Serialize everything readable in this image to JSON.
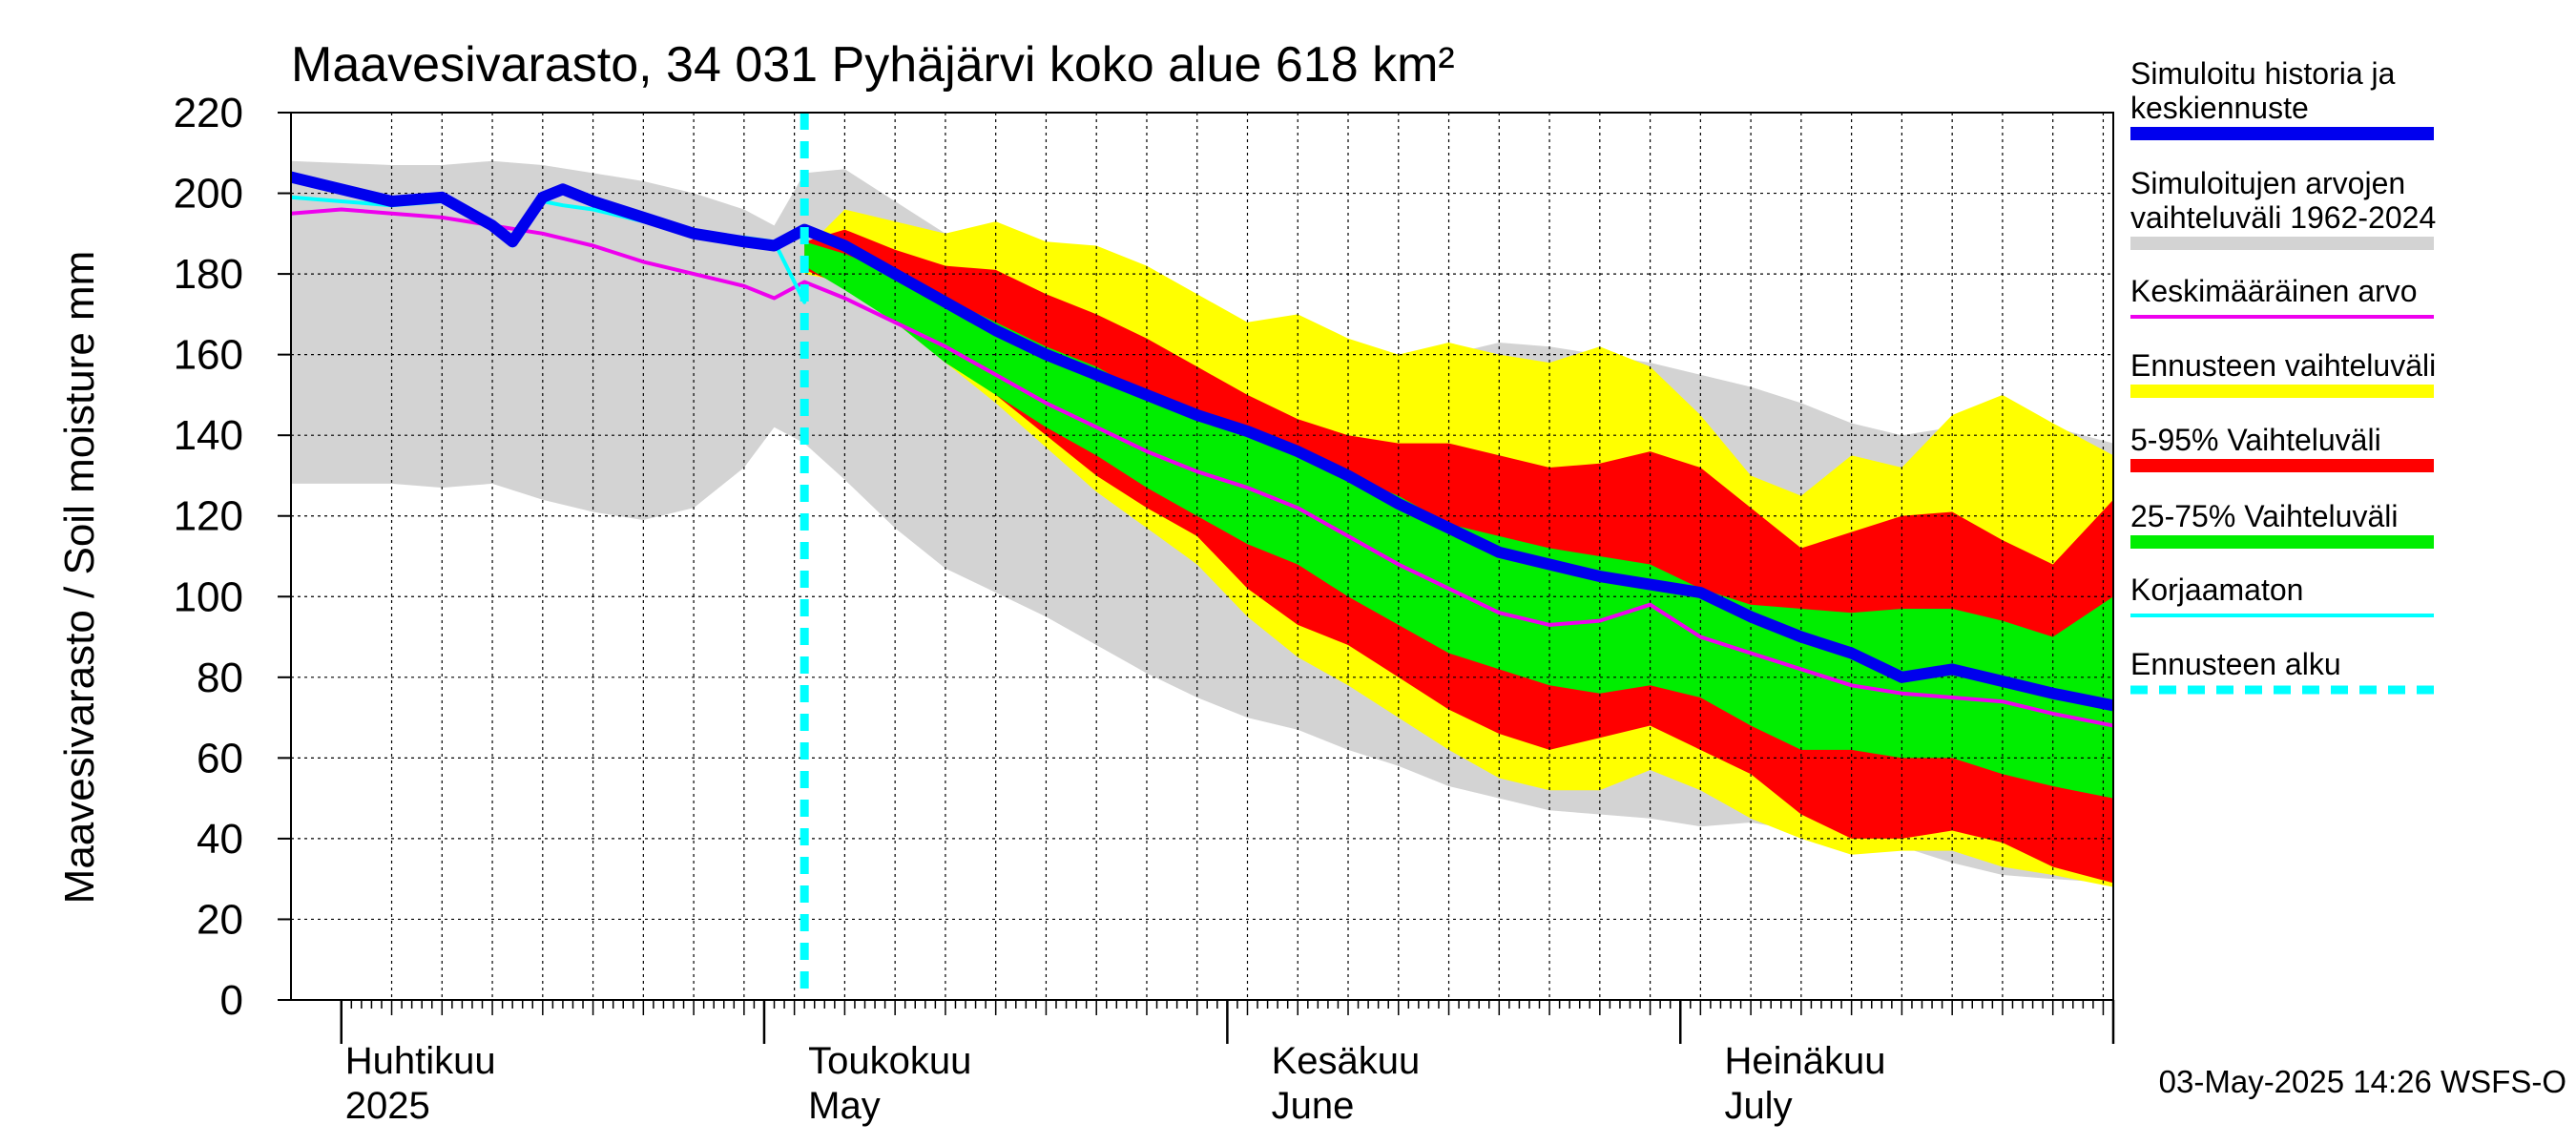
{
  "chart_data": {
    "type": "area",
    "title": "Maavesivarasto, 34 031 Pyhäjärvi koko alue 618 km²",
    "ylabel": "Maavesivarasto / Soil moisture   mm",
    "ylim": [
      0,
      220
    ],
    "yticks": [
      "0",
      "20",
      "40",
      "60",
      "80",
      "100",
      "120",
      "140",
      "160",
      "180",
      "200",
      "220"
    ],
    "x_range_days": [
      -5,
      176
    ],
    "forecast_start_day": 46,
    "month_labels": [
      {
        "fi": "Huhtikuu",
        "en": "2025",
        "day": 0
      },
      {
        "fi": "Toukokuu",
        "en": "May",
        "day": 46
      },
      {
        "fi": "Kesäkuu",
        "en": "June",
        "day": 92
      },
      {
        "fi": "Heinäkuu",
        "en": "July",
        "day": 137
      }
    ],
    "month_boundaries": [
      0,
      42,
      88,
      133,
      176
    ],
    "grid": true,
    "legend": [
      {
        "label": "Simuloitu historia ja keskiennuste",
        "line1": "Simuloitu historia ja",
        "line2": "keskiennuste",
        "color": "#0000ee",
        "style": "thick"
      },
      {
        "label": "Simuloitujen arvojen vaihteluväli 1962-2024",
        "line1": "Simuloitujen arvojen",
        "line2": "vaihteluväli 1962-2024",
        "color": "#d3d3d3",
        "style": "thick"
      },
      {
        "label": "Keskimääräinen arvo",
        "line1": "Keskimääräinen arvo",
        "line2": "",
        "color": "#ee00ee",
        "style": "thin"
      },
      {
        "label": "Ennusteen vaihteluväli",
        "line1": "Ennusteen vaihteluväli",
        "line2": "",
        "color": "#ffff00",
        "style": "thick"
      },
      {
        "label": "5-95% Vaihteluväli",
        "line1": "5-95% Vaihteluväli",
        "line2": "",
        "color": "#ff0000",
        "style": "thick"
      },
      {
        "label": "25-75% Vaihteluväli",
        "line1": "25-75% Vaihteluväli",
        "line2": "",
        "color": "#00ee00",
        "style": "thick"
      },
      {
        "label": "Korjaamaton",
        "line1": "Korjaamaton",
        "line2": "",
        "color": "#00ffff",
        "style": "thin"
      },
      {
        "label": "Ennusteen alku",
        "line1": "Ennusteen alku",
        "line2": "",
        "color": "#00ffff",
        "style": "dashed"
      }
    ],
    "series": {
      "hist_range": {
        "days": [
          -5,
          5,
          10,
          15,
          20,
          25,
          30,
          35,
          40,
          43,
          46,
          50,
          55,
          60,
          65,
          70,
          75,
          80,
          85,
          90,
          95,
          100,
          105,
          110,
          115,
          120,
          125,
          130,
          135,
          140,
          145,
          150,
          155,
          160,
          165,
          170,
          176
        ],
        "upper": [
          208,
          207,
          207,
          208,
          207,
          205,
          203,
          200,
          196,
          192,
          205,
          206,
          198,
          190,
          185,
          182,
          179,
          176,
          172,
          167,
          163,
          160,
          158,
          160,
          163,
          162,
          160,
          158,
          155,
          152,
          148,
          143,
          140,
          142,
          140,
          142,
          138
        ],
        "lower": [
          128,
          128,
          127,
          128,
          124,
          121,
          119,
          122,
          132,
          142,
          138,
          129,
          117,
          107,
          101,
          95,
          88,
          81,
          75,
          70,
          67,
          62,
          58,
          53,
          50,
          47,
          46,
          45,
          43,
          44,
          42,
          40,
          38,
          34,
          31,
          30,
          29
        ]
      },
      "forecast_range": {
        "days": [
          46,
          50,
          55,
          60,
          65,
          70,
          75,
          80,
          85,
          90,
          95,
          100,
          105,
          110,
          115,
          120,
          125,
          130,
          135,
          140,
          145,
          150,
          155,
          160,
          165,
          170,
          176
        ],
        "upper": [
          186,
          196,
          193,
          190,
          193,
          188,
          187,
          182,
          175,
          168,
          170,
          164,
          160,
          163,
          160,
          158,
          162,
          157,
          145,
          130,
          125,
          135,
          132,
          145,
          150,
          143,
          135
        ],
        "lower": [
          180,
          178,
          168,
          158,
          148,
          137,
          126,
          117,
          108,
          95,
          85,
          78,
          70,
          62,
          55,
          52,
          52,
          57,
          52,
          45,
          40,
          36,
          37,
          37,
          33,
          31,
          28
        ]
      },
      "p5_95": {
        "days": [
          46,
          50,
          55,
          60,
          65,
          70,
          75,
          80,
          85,
          90,
          95,
          100,
          105,
          110,
          115,
          120,
          125,
          130,
          135,
          140,
          145,
          150,
          155,
          160,
          165,
          170,
          176
        ],
        "upper": [
          188,
          191,
          186,
          182,
          181,
          175,
          170,
          164,
          157,
          150,
          144,
          140,
          138,
          138,
          135,
          132,
          133,
          136,
          132,
          122,
          112,
          116,
          120,
          121,
          114,
          108,
          124
        ],
        "lower": [
          181,
          177,
          170,
          160,
          150,
          140,
          130,
          122,
          115,
          102,
          93,
          88,
          80,
          72,
          66,
          62,
          65,
          68,
          62,
          56,
          46,
          40,
          40,
          42,
          39,
          33,
          29
        ]
      },
      "p25_75": {
        "days": [
          46,
          50,
          55,
          60,
          65,
          70,
          75,
          80,
          85,
          90,
          95,
          100,
          105,
          110,
          115,
          120,
          125,
          130,
          135,
          140,
          145,
          150,
          155,
          160,
          165,
          170,
          176
        ],
        "upper": [
          188,
          185,
          180,
          174,
          168,
          162,
          157,
          150,
          146,
          140,
          135,
          130,
          125,
          118,
          115,
          112,
          110,
          108,
          102,
          98,
          97,
          96,
          97,
          97,
          94,
          90,
          100
        ],
        "lower": [
          182,
          176,
          168,
          158,
          150,
          142,
          135,
          127,
          120,
          113,
          108,
          100,
          93,
          86,
          82,
          78,
          76,
          78,
          75,
          68,
          62,
          62,
          60,
          60,
          56,
          53,
          50
        ]
      },
      "mean": {
        "days": [
          -5,
          0,
          5,
          10,
          15,
          20,
          25,
          30,
          35,
          40,
          43,
          46,
          50,
          55,
          60,
          65,
          70,
          75,
          80,
          85,
          90,
          95,
          100,
          105,
          110,
          115,
          120,
          125,
          130,
          135,
          140,
          145,
          150,
          155,
          160,
          165,
          170,
          174,
          176
        ],
        "values": [
          195,
          196,
          195,
          194,
          192,
          190,
          187,
          183,
          180,
          177,
          174,
          178,
          174,
          168,
          162,
          155,
          148,
          142,
          136,
          131,
          127,
          122,
          115,
          108,
          102,
          96,
          93,
          94,
          98,
          90,
          86,
          82,
          78,
          76,
          75,
          74,
          71,
          69,
          68
        ]
      },
      "korjaamaton": {
        "days": [
          -5,
          0,
          5,
          10,
          15,
          17,
          20,
          22,
          25,
          30,
          35,
          40,
          43,
          46
        ],
        "values": [
          199,
          198,
          197,
          198,
          191,
          187,
          198,
          197,
          196,
          193,
          190,
          189,
          188,
          173
        ]
      },
      "simulated": {
        "days": [
          -5,
          0,
          5,
          10,
          15,
          17,
          20,
          22,
          25,
          30,
          35,
          40,
          43,
          46,
          50,
          55,
          60,
          65,
          70,
          75,
          80,
          85,
          90,
          95,
          100,
          105,
          110,
          115,
          120,
          125,
          130,
          135,
          140,
          145,
          150,
          155,
          160,
          165,
          170,
          176
        ],
        "values": [
          204,
          201,
          198,
          199,
          192,
          188,
          199,
          201,
          198,
          194,
          190,
          188,
          187,
          191,
          187,
          180,
          173,
          166,
          160,
          155,
          150,
          145,
          141,
          136,
          130,
          123,
          117,
          111,
          108,
          105,
          103,
          101,
          95,
          90,
          86,
          80,
          82,
          79,
          76,
          73
        ]
      }
    }
  },
  "footer": "03-May-2025 14:26 WSFS-O"
}
